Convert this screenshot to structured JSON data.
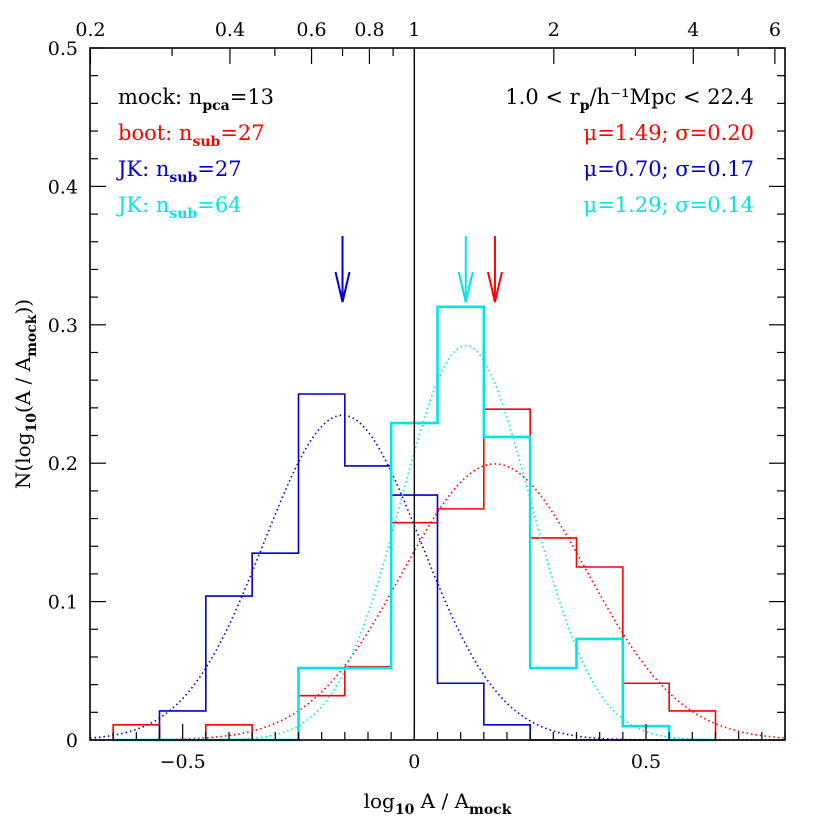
{
  "colors": {
    "mock": "#000000",
    "boot": "#ff0000",
    "jk27": "#0000cc",
    "jk64": "#00e5e5"
  },
  "chart_data": {
    "type": "histogram",
    "xlabel": {
      "prefix": "log",
      "sub1": "10",
      "mid": " A / A",
      "sub2": "mock"
    },
    "ylabel": {
      "prefix": "N(log",
      "sub1": "10",
      "mid": "(A / A",
      "sub2": "mock",
      "suffix": "))"
    },
    "xlim": [
      -0.7,
      0.8
    ],
    "ylim": [
      0,
      0.5
    ],
    "x_ticks": [
      -0.5,
      0,
      0.5
    ],
    "x_tick_labels": [
      "−0.5",
      "0",
      "0.5"
    ],
    "y_ticks": [
      0,
      0.1,
      0.2,
      0.3,
      0.4,
      0.5
    ],
    "y_tick_labels": [
      "0",
      "0.1",
      "0.2",
      "0.3",
      "0.4",
      "0.5"
    ],
    "top_axis": {
      "scale": "log",
      "ticks": [
        0.2,
        0.4,
        0.6,
        0.8,
        1,
        2,
        4,
        6
      ],
      "tick_labels": [
        "0.2",
        "0.4",
        "0.6",
        "0.8",
        "1",
        "2",
        "4",
        "6"
      ]
    },
    "reference_line_x": 0,
    "bin_edges": [
      -0.65,
      -0.55,
      -0.45,
      -0.35,
      -0.25,
      -0.15,
      -0.05,
      0.05,
      0.15,
      0.25,
      0.35,
      0.45,
      0.55,
      0.65
    ],
    "series": [
      {
        "key": "boot",
        "color": "#ff0000",
        "values": [
          0.011,
          0.0,
          0.011,
          0.0,
          0.032,
          0.053,
          0.157,
          0.167,
          0.239,
          0.146,
          0.125,
          0.041,
          0.021
        ],
        "fit": {
          "mu_log": 0.174,
          "sigma": 0.2
        },
        "arrow_x": 0.174
      },
      {
        "key": "jk27",
        "color": "#0000cc",
        "values": [
          0.0,
          0.021,
          0.104,
          0.135,
          0.25,
          0.198,
          0.177,
          0.041,
          0.011,
          0.0,
          0.0,
          0.0,
          0.0
        ],
        "fit": {
          "mu_log": -0.155,
          "sigma": 0.17
        },
        "arrow_x": -0.155
      },
      {
        "key": "jk64",
        "color": "#00e5e5",
        "values": [
          0.0,
          0.0,
          0.0,
          0.0,
          0.052,
          0.052,
          0.229,
          0.313,
          0.219,
          0.052,
          0.073,
          0.01,
          0.0
        ],
        "fit": {
          "mu_log": 0.111,
          "sigma": 0.14
        },
        "arrow_x": 0.111
      }
    ],
    "legend_left": [
      {
        "key": "mock",
        "color": "#000000",
        "pre": "mock: n",
        "sub": "pca",
        "post": "=13"
      },
      {
        "key": "boot",
        "color": "#ff0000",
        "pre": "boot: n",
        "sub": "sub",
        "post": "=27"
      },
      {
        "key": "jk27",
        "color": "#0000cc",
        "pre": "JK: n",
        "sub": "sub",
        "post": "=27"
      },
      {
        "key": "jk64",
        "color": "#00e5e5",
        "pre": "JK: n",
        "sub": "sub",
        "post": "=64"
      }
    ],
    "legend_right": [
      {
        "key": "range",
        "color": "#000000",
        "pre": "1.0 < r",
        "sub": "p",
        "post": "/h⁻¹Mpc < 22.4"
      },
      {
        "key": "boot",
        "color": "#ff0000",
        "pre": "μ=1.49; σ=0.20",
        "sub": "",
        "post": ""
      },
      {
        "key": "jk27",
        "color": "#0000cc",
        "pre": "μ=0.70; σ=0.17",
        "sub": "",
        "post": ""
      },
      {
        "key": "jk64",
        "color": "#00e5e5",
        "pre": "μ=1.29; σ=0.14",
        "sub": "",
        "post": ""
      }
    ]
  }
}
